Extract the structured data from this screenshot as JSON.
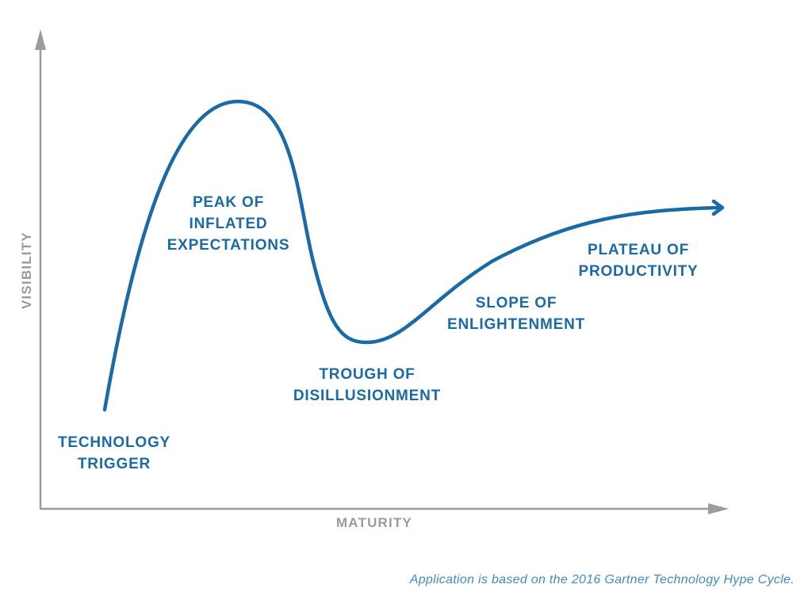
{
  "axes": {
    "y_label": "VISIBILITY",
    "x_label": "MATURITY",
    "axis_color": "#9b9b9b"
  },
  "curve": {
    "color": "#1a6aa5"
  },
  "phases": [
    {
      "lines": [
        "TECHNOLOGY",
        "TRIGGER"
      ]
    },
    {
      "lines": [
        "PEAK OF",
        "INFLATED",
        "EXPECTATIONS"
      ]
    },
    {
      "lines": [
        "TROUGH OF",
        "DISILLUSIONMENT"
      ]
    },
    {
      "lines": [
        "SLOPE OF",
        "ENLIGHTENMENT"
      ]
    },
    {
      "lines": [
        "PLATEAU OF",
        "PRODUCTIVITY"
      ]
    }
  ],
  "footnote": "Application is based on the 2016 Gartner Technology Hype Cycle."
}
